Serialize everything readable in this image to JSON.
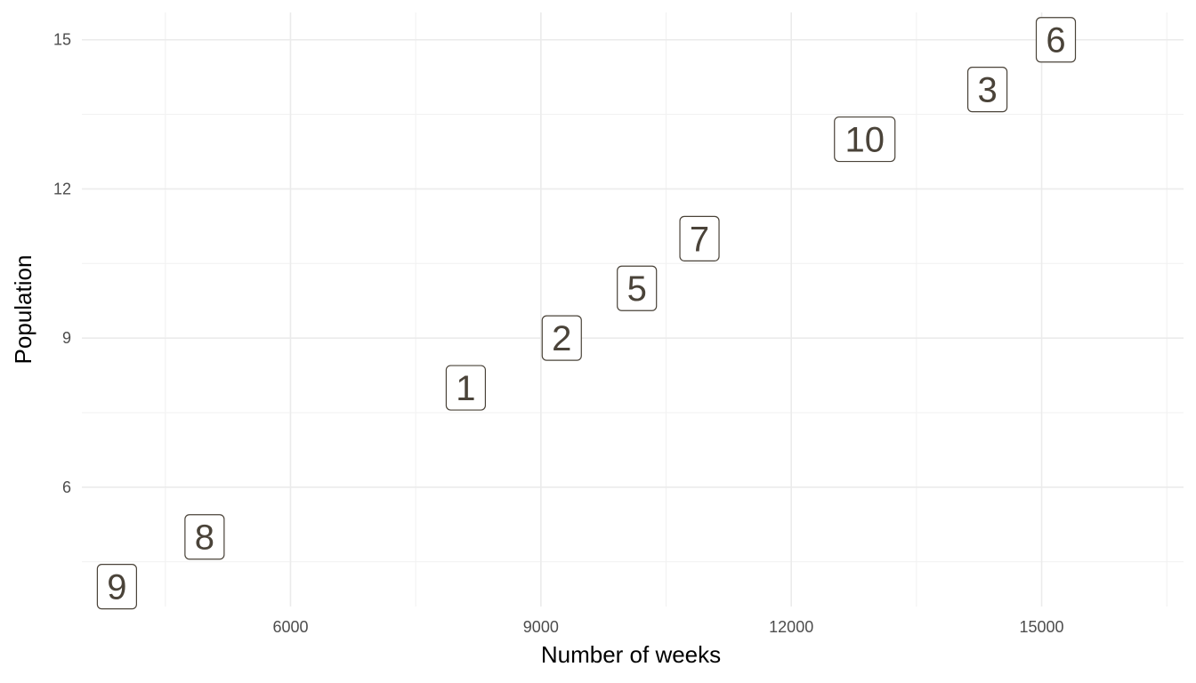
{
  "chart_data": {
    "type": "scatter",
    "xlabel": "Number of weeks",
    "ylabel": "Population",
    "xlim": [
      3500,
      16700
    ],
    "ylim": [
      3.6,
      15.55
    ],
    "x_ticks": [
      6000,
      9000,
      12000,
      15000
    ],
    "y_ticks": [
      6,
      9,
      12,
      15
    ],
    "grid": true,
    "points": [
      {
        "label": "1",
        "x": 8100,
        "y": 8
      },
      {
        "label": "2",
        "x": 9250,
        "y": 9
      },
      {
        "label": "3",
        "x": 14350,
        "y": 14
      },
      {
        "label": "5",
        "x": 10150,
        "y": 10
      },
      {
        "label": "6",
        "x": 15170,
        "y": 15
      },
      {
        "label": "7",
        "x": 10900,
        "y": 11
      },
      {
        "label": "8",
        "x": 4970,
        "y": 5
      },
      {
        "label": "9",
        "x": 3920,
        "y": 4
      },
      {
        "label": "10",
        "x": 12880,
        "y": 13
      }
    ],
    "colors": {
      "label_text": "#4a4339",
      "grid": "#ebebeb",
      "tick": "#4d4d4d"
    }
  }
}
